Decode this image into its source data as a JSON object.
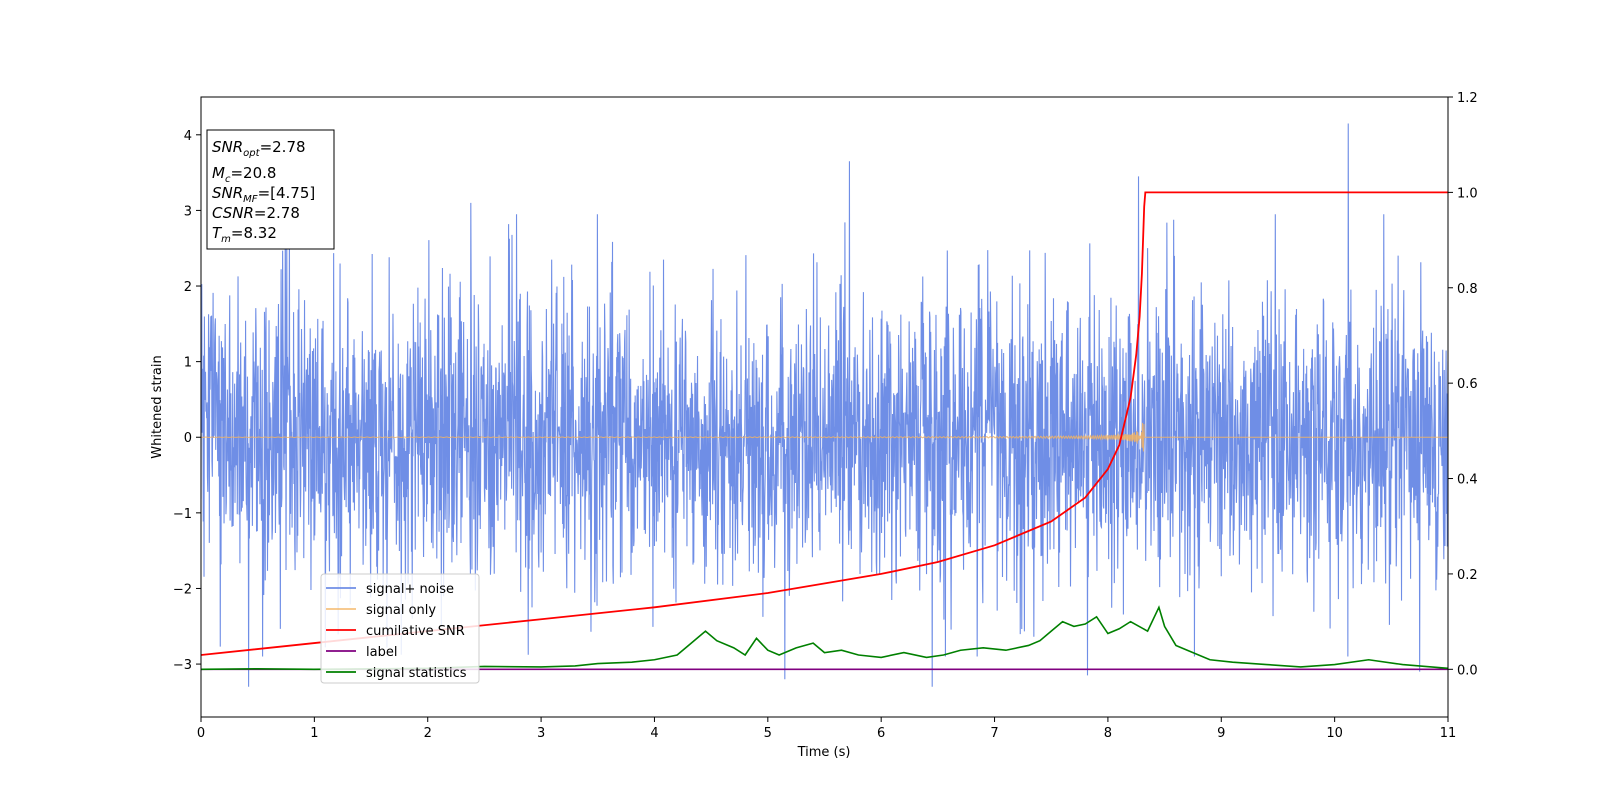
{
  "chart_data": {
    "type": "line",
    "xlabel": "Time (s)",
    "ylabel": "Whitened strain",
    "xlim": [
      0,
      11
    ],
    "ylim_left": [
      -3.7,
      4.5
    ],
    "ylim_right": [
      -0.1,
      1.2
    ],
    "xticks": [
      "0",
      "1",
      "2",
      "3",
      "4",
      "5",
      "6",
      "7",
      "8",
      "9",
      "10",
      "11"
    ],
    "yticks_left": [
      "−3",
      "−2",
      "−1",
      "0",
      "1",
      "2",
      "3",
      "4"
    ],
    "yticks_right": [
      "0.0",
      "0.2",
      "0.4",
      "0.6",
      "0.8",
      "1.0",
      "1.2"
    ],
    "legend_location": "lower-left",
    "grid": false,
    "annotation": {
      "snr_opt": "=2.78",
      "mc": "=20.8",
      "snr_mf": "=[4.75]",
      "csnr": "=2.78",
      "tm": "=8.32"
    },
    "series": [
      {
        "name": "signal+ noise",
        "axis": "left",
        "color": "#6f8ee6",
        "description_range": [
          -3.3,
          4.2
        ],
        "spikes": [
          {
            "x": 0.42,
            "y": -3.3
          },
          {
            "x": 2.38,
            "y": 3.1
          },
          {
            "x": 5.72,
            "y": 3.65
          },
          {
            "x": 6.45,
            "y": -3.3
          },
          {
            "x": 8.27,
            "y": 3.45
          },
          {
            "x": 10.12,
            "y": 4.15
          },
          {
            "x": 7.82,
            "y": -3.15
          },
          {
            "x": 5.15,
            "y": -3.2
          },
          {
            "x": 10.75,
            "y": -3.1
          }
        ]
      },
      {
        "name": "signal only",
        "axis": "left",
        "color": "#f4b460",
        "t_merger": 8.32,
        "peak_amplitude": 0.48
      },
      {
        "name": "cumilative SNR",
        "axis": "right",
        "color": "#ff0000",
        "x": [
          0,
          1,
          2,
          3,
          4,
          5,
          6,
          6.5,
          7,
          7.5,
          7.8,
          8.0,
          8.1,
          8.2,
          8.25,
          8.28,
          8.3,
          8.31,
          8.32,
          8.33,
          11
        ],
        "y": [
          0.03,
          0.055,
          0.08,
          0.105,
          0.13,
          0.16,
          0.2,
          0.225,
          0.26,
          0.31,
          0.36,
          0.42,
          0.47,
          0.57,
          0.66,
          0.74,
          0.83,
          0.9,
          0.97,
          1.0,
          1.0
        ]
      },
      {
        "name": "label",
        "axis": "right",
        "color": "#800080",
        "x": [
          0,
          11
        ],
        "y": [
          0.0,
          0.0
        ]
      },
      {
        "name": "signal statistics",
        "axis": "right",
        "color": "#008000",
        "x": [
          0,
          0.5,
          1,
          1.5,
          2,
          2.5,
          3,
          3.3,
          3.5,
          3.8,
          4.0,
          4.2,
          4.3,
          4.45,
          4.55,
          4.7,
          4.8,
          4.9,
          5.0,
          5.1,
          5.25,
          5.4,
          5.5,
          5.65,
          5.8,
          6.0,
          6.2,
          6.4,
          6.55,
          6.7,
          6.9,
          7.1,
          7.3,
          7.4,
          7.5,
          7.6,
          7.7,
          7.8,
          7.9,
          8.0,
          8.1,
          8.2,
          8.35,
          8.45,
          8.5,
          8.6,
          8.7,
          8.9,
          9.1,
          9.4,
          9.7,
          10.0,
          10.3,
          10.6,
          11
        ],
        "y": [
          0.0,
          0.001,
          0.0,
          0.001,
          0.002,
          0.006,
          0.005,
          0.007,
          0.012,
          0.015,
          0.02,
          0.03,
          0.05,
          0.08,
          0.06,
          0.045,
          0.03,
          0.065,
          0.04,
          0.03,
          0.045,
          0.055,
          0.035,
          0.04,
          0.03,
          0.025,
          0.035,
          0.025,
          0.03,
          0.04,
          0.045,
          0.04,
          0.05,
          0.06,
          0.08,
          0.1,
          0.09,
          0.095,
          0.11,
          0.075,
          0.085,
          0.1,
          0.08,
          0.13,
          0.09,
          0.05,
          0.04,
          0.02,
          0.015,
          0.01,
          0.005,
          0.01,
          0.02,
          0.01,
          0.002
        ]
      }
    ]
  }
}
